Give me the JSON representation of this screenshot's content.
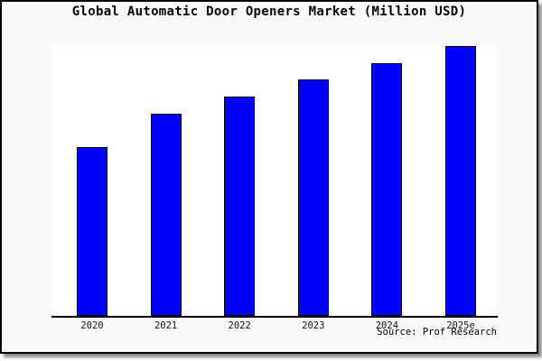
{
  "window": {
    "title": "Global Automatic Door Openers Market (Million USD)"
  },
  "source_note": "Source: Prof Research",
  "colors": {
    "bar_fill": "#0000fe",
    "bar_border": "#000000",
    "card_background": "#fafafa",
    "plot_background": "#ffffff",
    "axis": "#000000",
    "frame_border": "#000000",
    "text": "#000000"
  },
  "chart_data": {
    "type": "bar",
    "title": "Global Automatic Door Openers Market (Million USD)",
    "categories": [
      "2020",
      "2021",
      "2022",
      "2023",
      "2024",
      "2025e"
    ],
    "values": [
      100,
      120,
      130,
      140,
      150,
      160
    ],
    "value_note": "estimated from relative bar heights; no y-axis scale shown in image",
    "xlabel": "",
    "ylabel": "",
    "unit": "Million USD",
    "ylim": [
      0,
      161
    ],
    "grid": false,
    "legend": "none",
    "y_axis_labels_shown": false,
    "bar_color": "#0000fe",
    "source": "Source: Prof Research"
  }
}
